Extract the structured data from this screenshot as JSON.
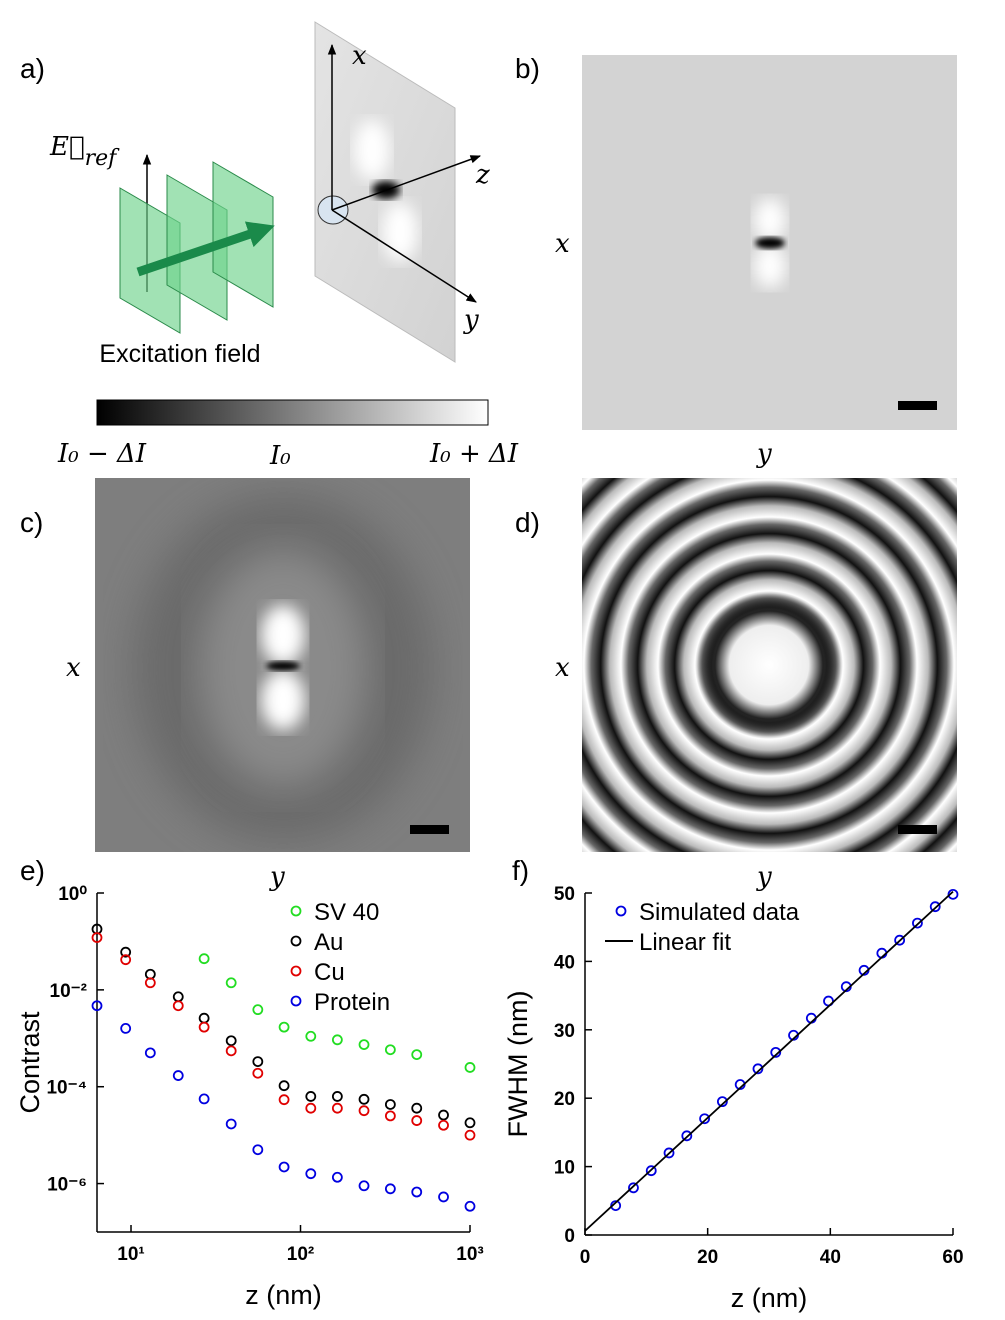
{
  "figure": {
    "panel_labels": [
      "a)",
      "b)",
      "c)",
      "d)",
      "e)",
      "f)"
    ],
    "e_ref_symbol": "E⃗",
    "e_ref_subscript": "ref",
    "excitation_label": "Excitation field",
    "axis_x": "x",
    "axis_y": "y",
    "axis_z": "z",
    "colorbar_labels": [
      "I₀ − ΔI",
      "I₀",
      "I₀ + ΔI"
    ]
  },
  "chart_data": [
    {
      "type": "scatter",
      "xscale": "log",
      "yscale": "log",
      "xlabel": "z (nm)",
      "ylabel": "Contrast",
      "xlim": [
        6.3,
        1000
      ],
      "ylim": [
        1e-07,
        1
      ],
      "xticks": [
        {
          "value": 10,
          "label": "10¹"
        },
        {
          "value": 100,
          "label": "10²"
        },
        {
          "value": 1000,
          "label": "10³"
        }
      ],
      "yticks": [
        {
          "value": 1,
          "label": "10⁰"
        },
        {
          "value": 0.01,
          "label": "10⁻²"
        },
        {
          "value": 0.0001,
          "label": "10⁻⁴"
        },
        {
          "value": 1e-06,
          "label": "10⁻⁶"
        }
      ],
      "legend": "upper right",
      "x": [
        6.3,
        9.3,
        13,
        19,
        27,
        39,
        56,
        80,
        115,
        165,
        237,
        339,
        485,
        698,
        1000
      ],
      "series": [
        {
          "name": "SV 40",
          "color": "#22dd22",
          "values": [
            null,
            null,
            null,
            null,
            0.044,
            0.014,
            0.0039,
            0.0017,
            0.0011,
            0.00093,
            0.00074,
            0.00058,
            0.00046,
            null,
            0.00025
          ]
        },
        {
          "name": "Au",
          "color": "#000000",
          "values": [
            0.18,
            0.06,
            0.021,
            0.0072,
            0.0026,
            0.00089,
            0.00033,
            0.000105,
            6.3e-05,
            6.3e-05,
            5.5e-05,
            4.3e-05,
            3.6e-05,
            2.6e-05,
            1.8e-05
          ]
        },
        {
          "name": "Cu",
          "color": "#e00000",
          "values": [
            0.12,
            0.042,
            0.014,
            0.0047,
            0.0017,
            0.00055,
            0.00019,
            5.4e-05,
            3.6e-05,
            3.6e-05,
            3.2e-05,
            2.5e-05,
            2e-05,
            1.6e-05,
            1e-05
          ]
        },
        {
          "name": "Protein",
          "color": "#0000e0",
          "values": [
            0.0047,
            0.0016,
            0.0005,
            0.00017,
            5.6e-05,
            1.7e-05,
            5e-06,
            2.2e-06,
            1.6e-06,
            1.35e-06,
            9e-07,
            7.8e-07,
            6.7e-07,
            5.3e-07,
            3.4e-07
          ]
        }
      ]
    },
    {
      "type": "scatter",
      "xscale": "linear",
      "yscale": "linear",
      "xlabel": "z (nm)",
      "ylabel": "FWHM (nm)",
      "xlim": [
        0,
        60
      ],
      "ylim": [
        0,
        50
      ],
      "xticks": [
        0,
        20,
        40,
        60
      ],
      "yticks": [
        0,
        10,
        20,
        30,
        40,
        50
      ],
      "legend": "upper left",
      "series": [
        {
          "name": "Simulated data",
          "type": "scatter",
          "color": "#0000e0",
          "x": [
            5,
            7.9,
            10.8,
            13.7,
            16.6,
            19.5,
            22.4,
            25.3,
            28.2,
            31.1,
            34,
            36.9,
            39.7,
            42.6,
            45.5,
            48.4,
            51.3,
            54.2,
            57.1,
            60
          ],
          "values": [
            4.3,
            6.9,
            9.4,
            12,
            14.5,
            17,
            19.5,
            22,
            24.3,
            26.7,
            29.2,
            31.7,
            34.2,
            36.3,
            38.7,
            41.2,
            43.1,
            45.6,
            48,
            49.8
          ]
        },
        {
          "name": "Linear fit",
          "type": "line",
          "color": "#000000",
          "x": [
            0,
            60
          ],
          "values": [
            0.6,
            50.2
          ]
        }
      ]
    }
  ]
}
